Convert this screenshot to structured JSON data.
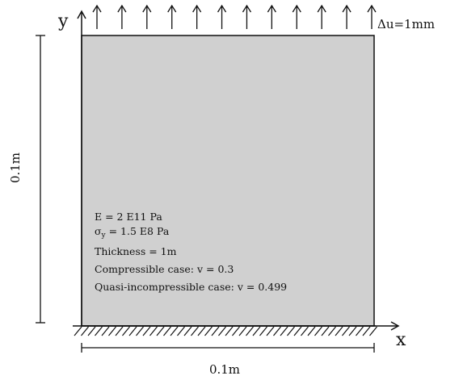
{
  "axes": {
    "x_label": "x",
    "y_label": "y"
  },
  "load": {
    "label": "Δu=1mm",
    "arrow_count": 12
  },
  "dimensions": {
    "height_label": "0.1m",
    "width_label": "0.1m"
  },
  "properties": {
    "young_modulus": "E = 2 E11 Pa",
    "yield_symbol": "σ",
    "yield_subscript": "y",
    "yield_value": " = 1.5 E8 Pa",
    "thickness": "Thickness = 1m",
    "compressible": "Compressible case:  v = 0.3",
    "quasi_incompressible": "Quasi-incompressible case: v = 0.499"
  },
  "colors": {
    "plate_fill": "#d0d0d0",
    "stroke": "#111111"
  }
}
